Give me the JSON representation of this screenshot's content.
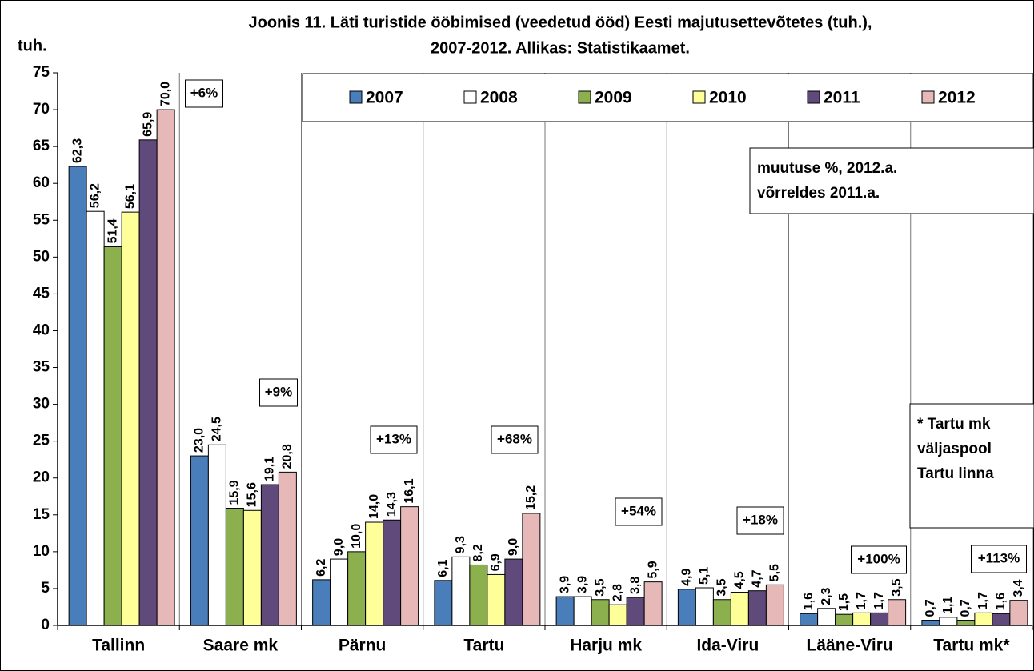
{
  "chart_data": {
    "type": "bar",
    "title": [
      "Joonis 11. Läti turistide ööbimised (veedetud ööd) Eesti majutusettevõtetes (tuh.),",
      "2007-2012. Allikas: Statistikaamet."
    ],
    "y_axis_label": "tuh.",
    "categories": [
      "Tallinn",
      "Saare mk",
      "Pärnu",
      "Tartu",
      "Harju mk",
      "Ida-Viru",
      "Lääne-Viru",
      "Tartu mk*"
    ],
    "series": [
      {
        "name": "2007",
        "color": "#4a7ebb",
        "values": [
          62.3,
          23.0,
          6.2,
          6.1,
          3.9,
          4.9,
          1.6,
          0.7
        ],
        "value_labels": [
          "62,3",
          "23,0",
          "6,2",
          "6,1",
          "3,9",
          "4,9",
          "1,6",
          "0,7"
        ]
      },
      {
        "name": "2008",
        "color": "#ffffff",
        "values": [
          56.2,
          24.5,
          9.0,
          9.3,
          3.9,
          5.1,
          2.3,
          1.1
        ],
        "value_labels": [
          "56,2",
          "24,5",
          "9,0",
          "9,3",
          "3,9",
          "5,1",
          "2,3",
          "1,1"
        ]
      },
      {
        "name": "2009",
        "color": "#8db04f",
        "values": [
          51.4,
          15.9,
          10.0,
          8.2,
          3.5,
          3.5,
          1.5,
          0.7
        ],
        "value_labels": [
          "51,4",
          "15,9",
          "10,0",
          "8,2",
          "3,5",
          "3,5",
          "1,5",
          "0,7"
        ]
      },
      {
        "name": "2010",
        "color": "#ffff99",
        "values": [
          56.1,
          15.6,
          14.0,
          6.9,
          2.8,
          4.5,
          1.7,
          1.7
        ],
        "value_labels": [
          "56,1",
          "15,6",
          "14,0",
          "6,9",
          "2,8",
          "4,5",
          "1,7",
          "1,7"
        ]
      },
      {
        "name": "2011",
        "color": "#604a7b",
        "values": [
          65.9,
          19.1,
          14.3,
          9.0,
          3.8,
          4.7,
          1.7,
          1.6
        ],
        "value_labels": [
          "65,9",
          "19,1",
          "14,3",
          "9,0",
          "3,8",
          "4,7",
          "1,7",
          "1,6"
        ]
      },
      {
        "name": "2012",
        "color": "#e6b9b8",
        "values": [
          70.0,
          20.8,
          16.1,
          15.2,
          5.9,
          5.5,
          3.5,
          3.4
        ],
        "value_labels": [
          "70,0",
          "20,8",
          "16,1",
          "15,2",
          "5,9",
          "5,5",
          "3,5",
          "3,4"
        ]
      }
    ],
    "annotations": [
      "+6%",
      "+9%",
      "+13%",
      "+68%",
      "+54%",
      "+18%",
      "+100%",
      "+113%"
    ],
    "notes": [
      [
        "muutuse %, 2012.a.",
        "võrreldes 2011.a."
      ],
      [
        "* Tartu mk",
        "väljaspool",
        "Tartu linna"
      ]
    ],
    "ylim": [
      0,
      75
    ],
    "yticks": [
      0,
      5,
      10,
      15,
      20,
      25,
      30,
      35,
      40,
      45,
      50,
      55,
      60,
      65,
      70,
      75
    ],
    "legend": "top-right"
  }
}
